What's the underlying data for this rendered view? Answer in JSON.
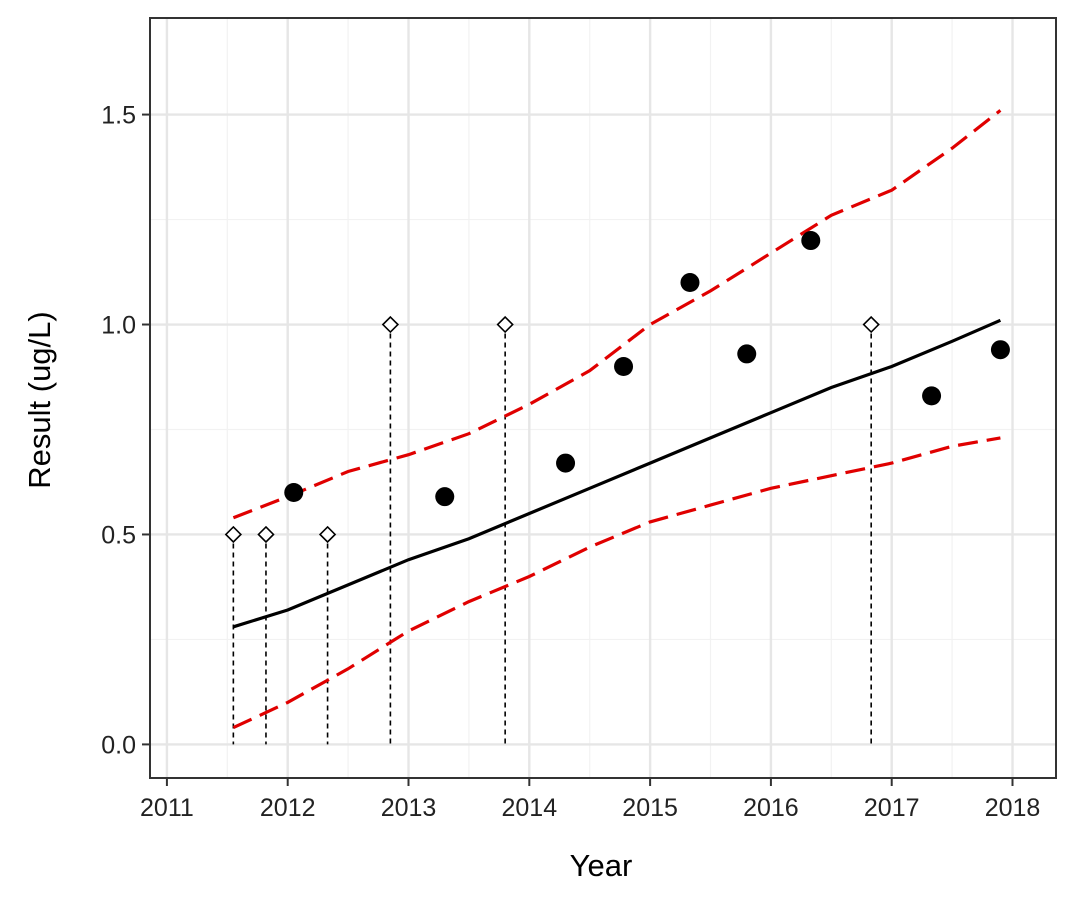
{
  "chart_data": {
    "type": "scatter",
    "xlabel": "Year",
    "ylabel": "Result (ug/L)",
    "xlim": [
      2010.86,
      2018.36
    ],
    "ylim": [
      -0.08,
      1.73
    ],
    "x_ticks": [
      2011,
      2012,
      2013,
      2014,
      2015,
      2016,
      2017,
      2018
    ],
    "x_tick_labels": [
      "2011",
      "2012",
      "2013",
      "2014",
      "2015",
      "2016",
      "2017",
      "2018"
    ],
    "y_ticks": [
      0.0,
      0.5,
      1.0,
      1.5
    ],
    "y_tick_labels": [
      "0.0",
      "0.5",
      "1.0",
      "1.5"
    ],
    "grid": true,
    "detected": [
      {
        "x": 2012.05,
        "y": 0.6
      },
      {
        "x": 2013.3,
        "y": 0.59
      },
      {
        "x": 2014.3,
        "y": 0.67
      },
      {
        "x": 2014.78,
        "y": 0.9
      },
      {
        "x": 2015.33,
        "y": 1.1
      },
      {
        "x": 2015.8,
        "y": 0.93
      },
      {
        "x": 2016.33,
        "y": 1.2
      },
      {
        "x": 2017.33,
        "y": 0.83
      },
      {
        "x": 2017.9,
        "y": 0.94
      }
    ],
    "censored": [
      {
        "x": 2011.55,
        "y": 0.5
      },
      {
        "x": 2011.82,
        "y": 0.5
      },
      {
        "x": 2012.33,
        "y": 0.5
      },
      {
        "x": 2012.85,
        "y": 1.0
      },
      {
        "x": 2013.8,
        "y": 1.0
      },
      {
        "x": 2016.83,
        "y": 1.0
      }
    ],
    "trend": {
      "x": [
        2011.55,
        2012.0,
        2012.5,
        2013.0,
        2013.5,
        2014.0,
        2014.5,
        2015.0,
        2015.5,
        2016.0,
        2016.5,
        2017.0,
        2017.5,
        2017.9
      ],
      "y": [
        0.28,
        0.32,
        0.38,
        0.44,
        0.49,
        0.55,
        0.61,
        0.67,
        0.73,
        0.79,
        0.85,
        0.9,
        0.96,
        1.01
      ]
    },
    "upper_band": {
      "x": [
        2011.55,
        2012.0,
        2012.5,
        2013.0,
        2013.5,
        2014.0,
        2014.5,
        2015.0,
        2015.5,
        2016.0,
        2016.5,
        2017.0,
        2017.5,
        2017.9
      ],
      "y": [
        0.54,
        0.59,
        0.65,
        0.69,
        0.74,
        0.81,
        0.89,
        1.0,
        1.08,
        1.17,
        1.26,
        1.32,
        1.42,
        1.51
      ]
    },
    "lower_band": {
      "x": [
        2011.55,
        2012.0,
        2012.5,
        2013.0,
        2013.5,
        2014.0,
        2014.5,
        2015.0,
        2015.5,
        2016.0,
        2016.5,
        2017.0,
        2017.5,
        2017.9
      ],
      "y": [
        0.04,
        0.1,
        0.18,
        0.27,
        0.34,
        0.4,
        0.47,
        0.53,
        0.57,
        0.61,
        0.64,
        0.67,
        0.71,
        0.73
      ]
    },
    "colors": {
      "detected": "#000000",
      "censored_fill": "#ffffff",
      "censored_stroke": "#000000",
      "trend": "#000000",
      "band": "#e00000",
      "grid_major": "#e6e6e6",
      "grid_minor": "#f2f2f2",
      "panel_border": "#333333"
    }
  }
}
